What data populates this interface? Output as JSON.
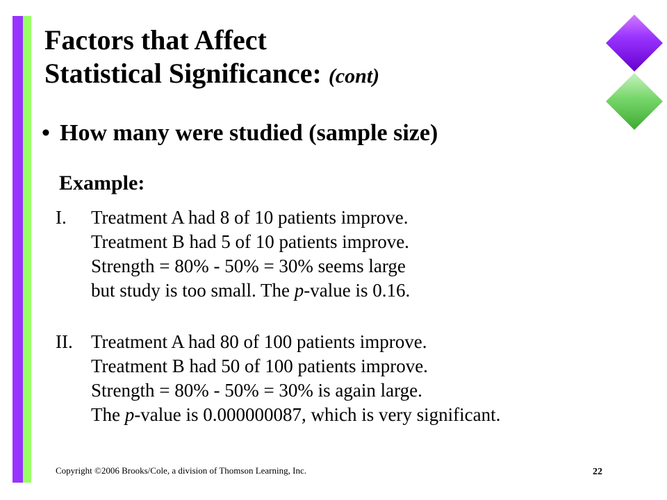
{
  "title": {
    "line1": "Factors that Affect",
    "line2": "Statistical Significance:",
    "suffix": "(cont)"
  },
  "bullet": "How many were studied (sample size)",
  "example_label": "Example:",
  "items": [
    {
      "number": "I.",
      "lines": [
        "Treatment A had 8 of 10 patients improve.",
        "Treatment B had 5 of 10 patients improve.",
        "Strength = 80% - 50% = 30% seems large"
      ],
      "last_line": {
        "before": "but study is too small. The ",
        "italic": "p",
        "after": "-value is 0.16."
      }
    },
    {
      "number": "II.",
      "lines": [
        "Treatment A had 80 of 100 patients improve.",
        "Treatment B had 50 of 100 patients improve.",
        "Strength = 80% - 50% = 30% is again large."
      ],
      "last_line": {
        "before": "The ",
        "italic": "p",
        "after": "-value is 0.000000087, which is very significant."
      }
    }
  ],
  "footer": {
    "copyright": "Copyright ©2006 Brooks/Cole, a division of Thomson Learning, Inc.",
    "page_number": "22"
  },
  "colors": {
    "accent_purple": "#9933ff",
    "accent_green": "#99ff66"
  }
}
